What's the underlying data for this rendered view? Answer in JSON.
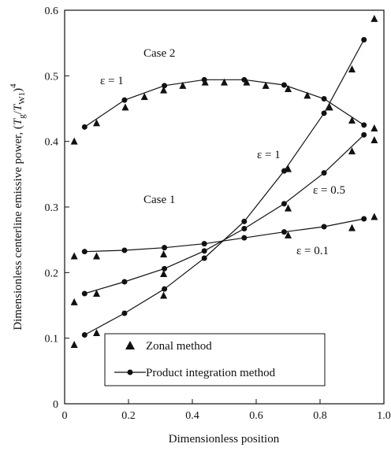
{
  "chart_data": {
    "type": "line",
    "xlabel": "Dimensionless position",
    "ylabel": [
      "Dimensionless centerline emissive power, (",
      "T",
      "g",
      "/",
      "T",
      "W1",
      ")",
      "4"
    ],
    "xlim": [
      0,
      1
    ],
    "ylim": [
      0,
      0.6
    ],
    "xticks": [
      0,
      0.2,
      0.4,
      0.6,
      0.8,
      {
        "value": 1,
        "label": "1.0"
      }
    ],
    "yticks": [
      0,
      0.1,
      0.2,
      0.3,
      0.4,
      0.5,
      0.6
    ],
    "color": "#111111",
    "annotations": [
      "Case 2",
      "ε = 1",
      "Case 1",
      "ε = 1",
      "ε = 0.5",
      "ε = 0.1"
    ],
    "zonal": {
      "name": "Zonal method",
      "curves": [
        {
          "x": [
            0.03,
            0.1,
            0.19,
            0.25,
            0.31,
            0.37,
            0.44,
            0.5,
            0.57,
            0.63,
            0.7,
            0.76,
            0.83,
            0.9,
            0.97
          ],
          "values": [
            0.4,
            0.428,
            0.452,
            0.468,
            0.478,
            0.485,
            0.49,
            0.49,
            0.49,
            0.485,
            0.48,
            0.47,
            0.452,
            0.432,
            0.42
          ]
        },
        {
          "x": [
            0.03,
            0.1,
            0.31,
            0.7,
            0.9,
            0.97
          ],
          "values": [
            0.09,
            0.108,
            0.165,
            0.358,
            0.51,
            0.587
          ]
        },
        {
          "x": [
            0.03,
            0.1,
            0.31,
            0.7,
            0.9,
            0.97
          ],
          "values": [
            0.155,
            0.168,
            0.198,
            0.298,
            0.385,
            0.402
          ]
        },
        {
          "x": [
            0.03,
            0.1,
            0.31,
            0.7,
            0.9,
            0.97
          ],
          "values": [
            0.225,
            0.225,
            0.228,
            0.257,
            0.268,
            0.285
          ]
        }
      ]
    },
    "product": {
      "name": "Product integration method",
      "curves": [
        {
          "x": [
            0.0625,
            0.1875,
            0.3125,
            0.4375,
            0.5625,
            0.6875,
            0.8125,
            0.9375
          ],
          "values": [
            0.422,
            0.463,
            0.485,
            0.494,
            0.494,
            0.486,
            0.465,
            0.425
          ]
        },
        {
          "x": [
            0.0625,
            0.1875,
            0.3125,
            0.4375,
            0.5625,
            0.6875,
            0.8125,
            0.9375
          ],
          "values": [
            0.105,
            0.138,
            0.175,
            0.222,
            0.278,
            0.355,
            0.443,
            0.555
          ]
        },
        {
          "x": [
            0.0625,
            0.1875,
            0.3125,
            0.4375,
            0.5625,
            0.6875,
            0.8125,
            0.9375
          ],
          "values": [
            0.168,
            0.186,
            0.206,
            0.233,
            0.267,
            0.305,
            0.352,
            0.41
          ]
        },
        {
          "x": [
            0.0625,
            0.1875,
            0.3125,
            0.4375,
            0.5625,
            0.6875,
            0.8125,
            0.9375
          ],
          "values": [
            0.232,
            0.234,
            0.238,
            0.244,
            0.253,
            0.262,
            0.27,
            0.282
          ]
        }
      ]
    }
  }
}
